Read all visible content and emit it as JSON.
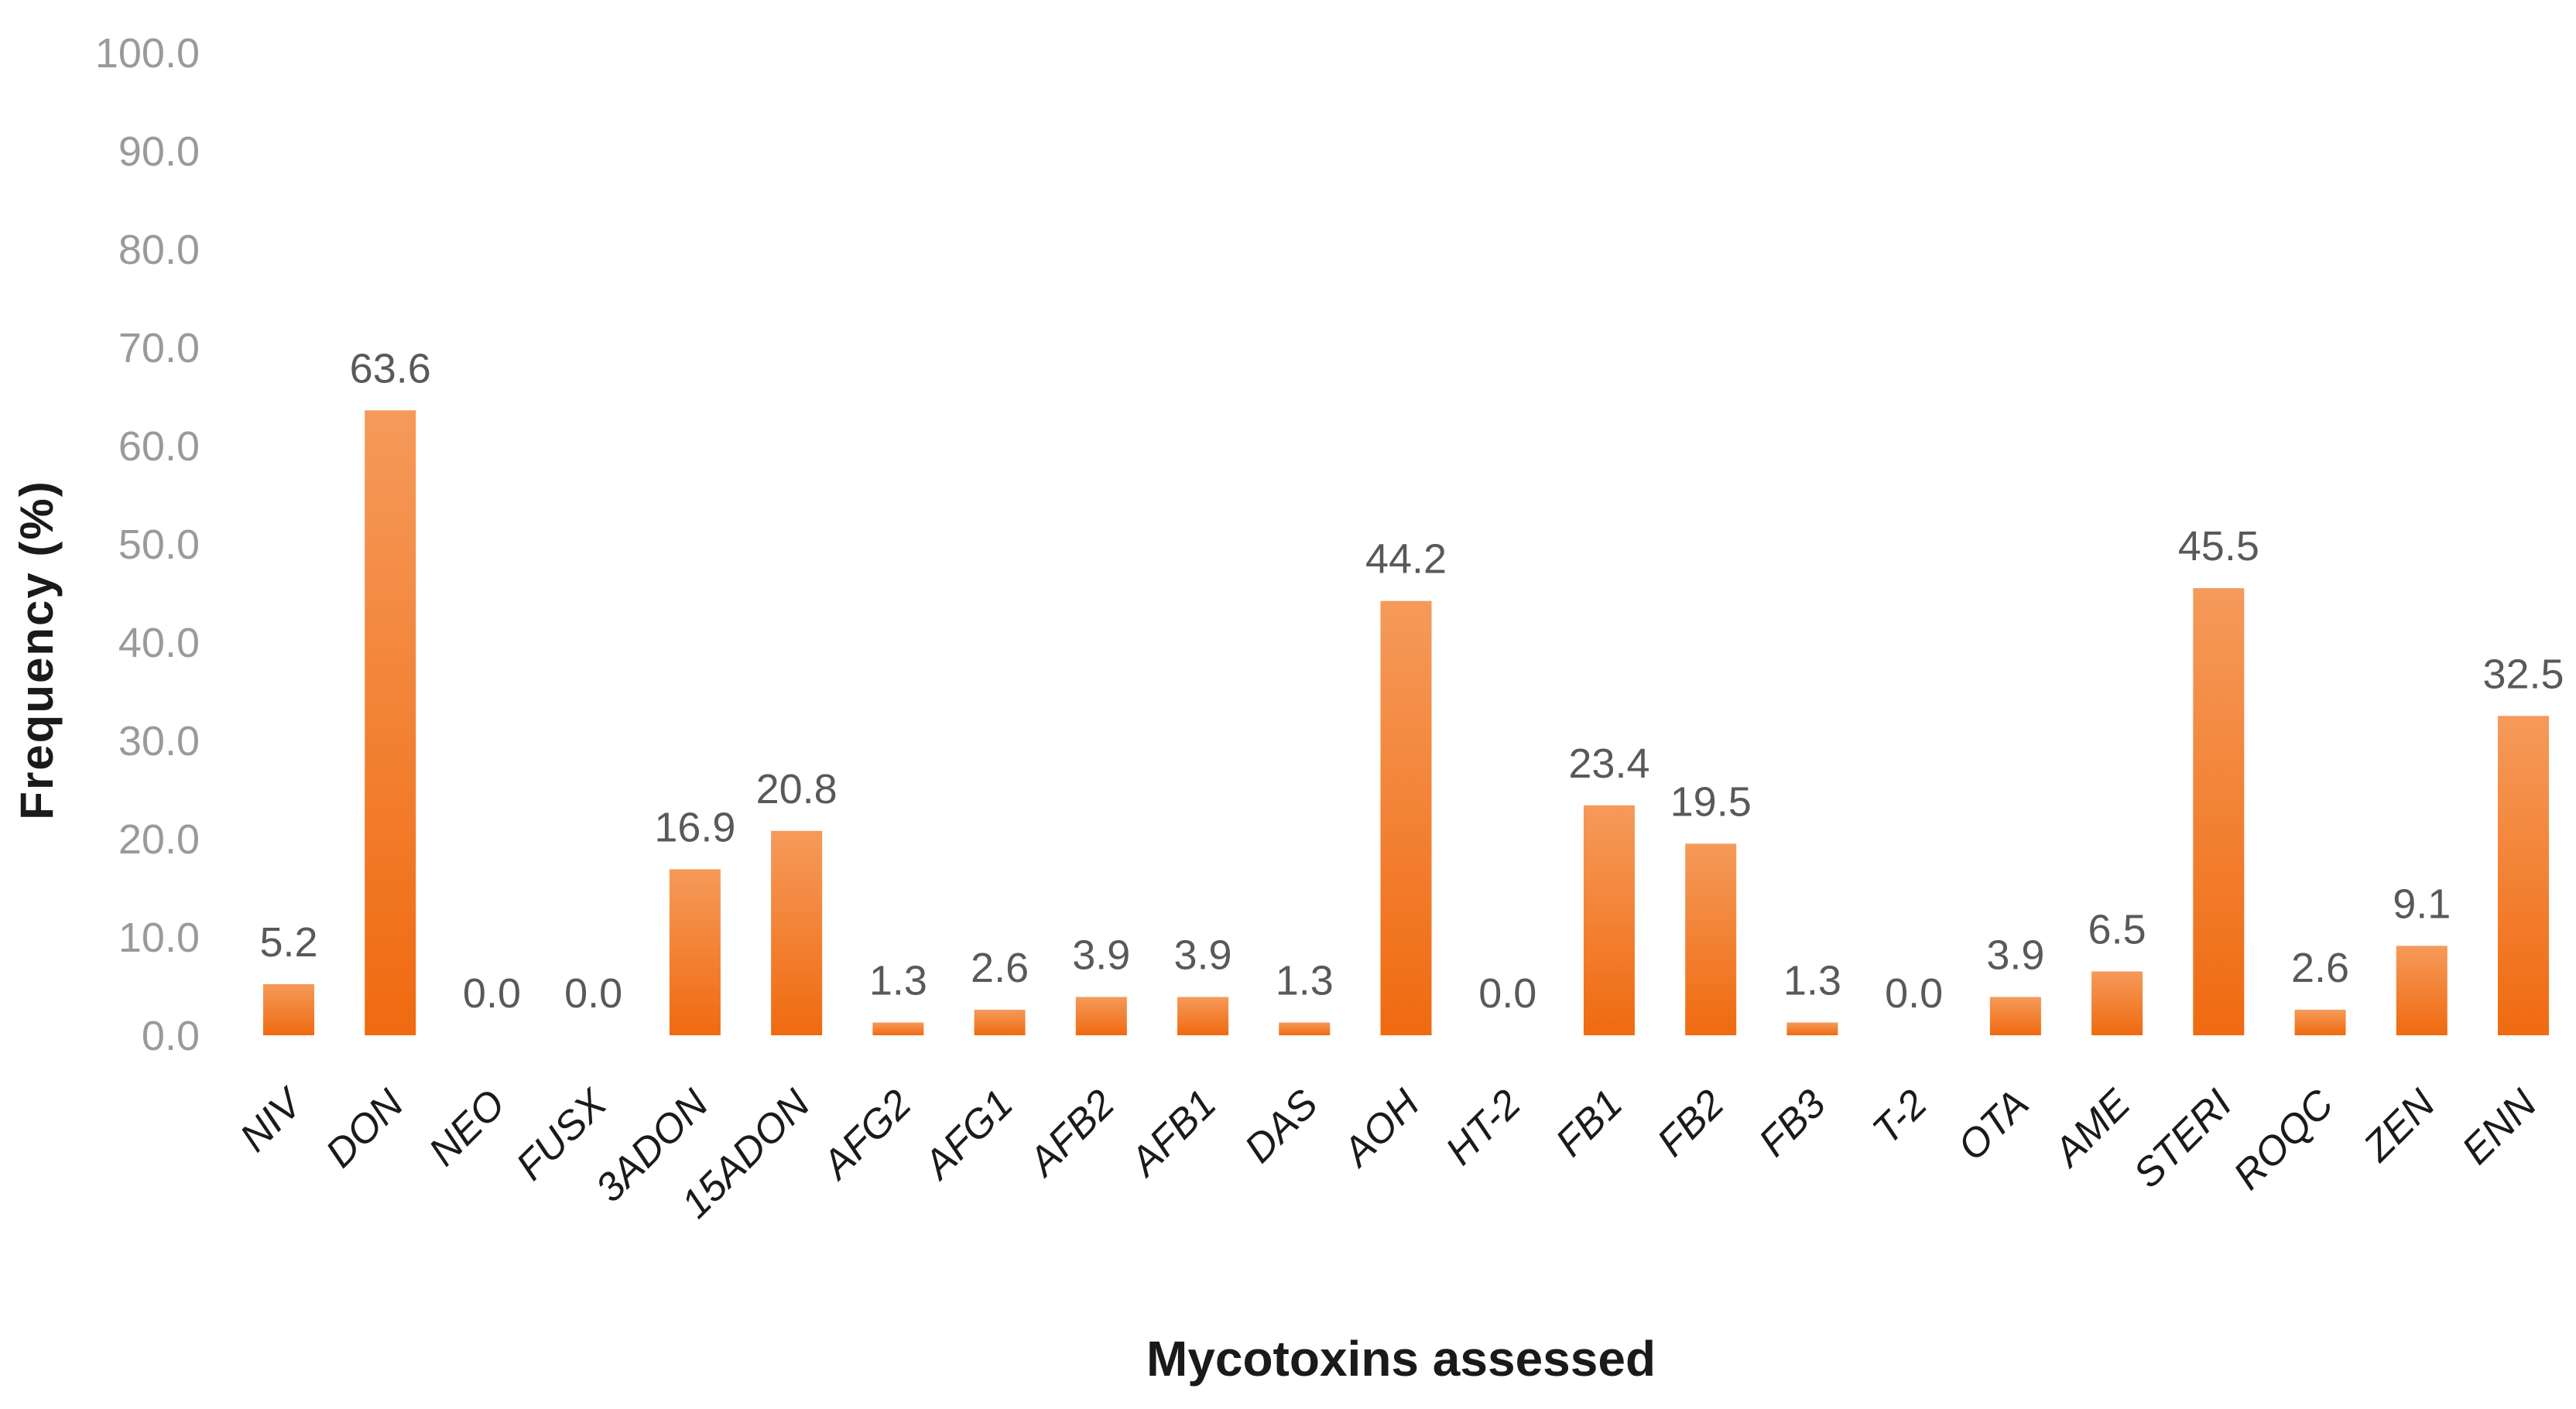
{
  "chart_data": {
    "type": "bar",
    "title": "",
    "xlabel": "Mycotoxins assessed",
    "ylabel": "Frequency (%)",
    "ylim": [
      0,
      100
    ],
    "yticks": [
      0,
      10,
      20,
      30,
      40,
      50,
      60,
      70,
      80,
      90,
      100
    ],
    "ytick_labels": [
      "0.0",
      "10.0",
      "20.0",
      "30.0",
      "40.0",
      "50.0",
      "60.0",
      "70.0",
      "80.0",
      "90.0",
      "100.0"
    ],
    "grid": false,
    "bar_color": "#f07a22",
    "categories": [
      "NIV",
      "DON",
      "NEO",
      "FUSX",
      "3ADON",
      "15ADON",
      "AFG2",
      "AFG1",
      "AFB2",
      "AFB1",
      "DAS",
      "AOH",
      "HT-2",
      "FB1",
      "FB2",
      "FB3",
      "T-2",
      "OTA",
      "AME",
      "STERI",
      "ROQC",
      "ZEN",
      "ENN"
    ],
    "values": [
      5.2,
      63.6,
      0.0,
      0.0,
      16.9,
      20.8,
      1.3,
      2.6,
      3.9,
      3.9,
      1.3,
      44.2,
      0.0,
      23.4,
      19.5,
      1.3,
      0.0,
      3.9,
      6.5,
      45.5,
      2.6,
      9.1,
      32.5
    ],
    "value_labels": [
      "5.2",
      "63.6",
      "0.0",
      "0.0",
      "16.9",
      "20.8",
      "1.3",
      "2.6",
      "3.9",
      "3.9",
      "1.3",
      "44.2",
      "0.0",
      "23.4",
      "19.5",
      "1.3",
      "0.0",
      "3.9",
      "6.5",
      "45.5",
      "2.6",
      "9.1",
      "32.5"
    ]
  }
}
